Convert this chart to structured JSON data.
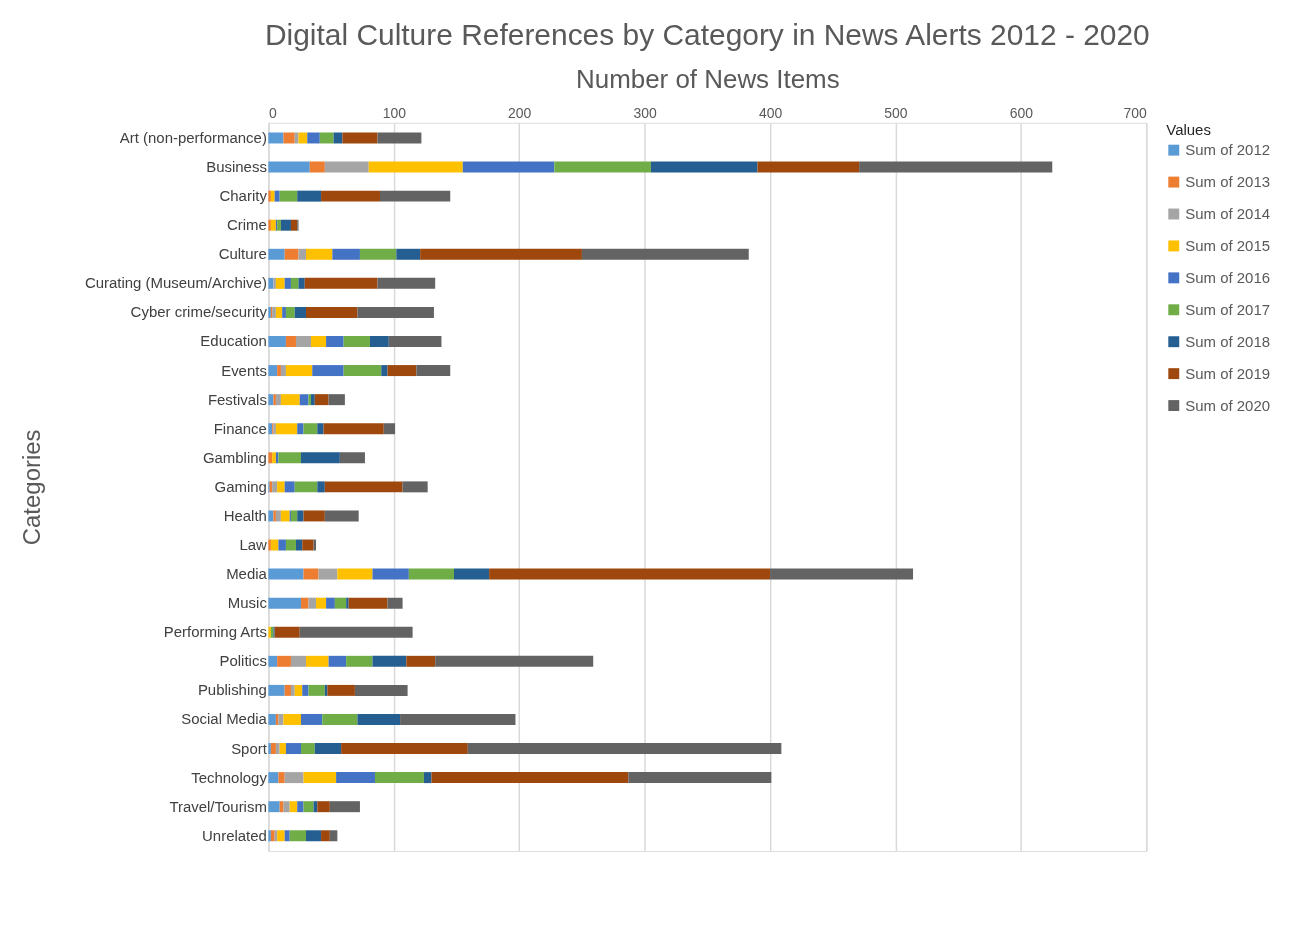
{
  "chart_data": {
    "type": "bar",
    "orientation": "horizontal",
    "stacked": true,
    "title": "Digital Culture References by Category in News Alerts 2012 - 2020",
    "xlabel": "Number of News Items",
    "ylabel": "Categories",
    "legend_title": "Values",
    "categories": [
      "Art (non-performance)",
      "Business",
      "Charity",
      "Crime",
      "Culture",
      "Curating (Museum/Archive)",
      "Cyber crime/security",
      "Education",
      "Events",
      "Festivals",
      "Finance",
      "Gambling",
      "Gaming",
      "Health",
      "Law",
      "Media",
      "Music",
      "Performing Arts",
      "Politics",
      "Publishing",
      "Social Media",
      "Sport",
      "Technology",
      "Travel/Tourism",
      "Unrelated"
    ],
    "series": [
      {
        "name": "Sum of 2012",
        "color": "#5b9bd5",
        "values": [
          12,
          33,
          0,
          0,
          13,
          4,
          2,
          14,
          7,
          4,
          3,
          0,
          1,
          4,
          0,
          28,
          26,
          0,
          7,
          13,
          6,
          2,
          8,
          9,
          2
        ]
      },
      {
        "name": "Sum of 2013",
        "color": "#ed7d31",
        "values": [
          9,
          12,
          2,
          2,
          11,
          0,
          1,
          8,
          3,
          2,
          1,
          3,
          2,
          2,
          2,
          12,
          6,
          0,
          11,
          5,
          2,
          4,
          5,
          3,
          3
        ]
      },
      {
        "name": "Sum of 2014",
        "color": "#a5a5a5",
        "values": [
          3,
          35,
          0,
          0,
          6,
          2,
          3,
          12,
          4,
          4,
          2,
          0,
          4,
          4,
          0,
          15,
          6,
          0,
          12,
          3,
          4,
          3,
          15,
          5,
          2
        ]
      },
      {
        "name": "Sum of 2015",
        "color": "#ffc000",
        "values": [
          7,
          75,
          3,
          4,
          21,
          7,
          5,
          12,
          21,
          15,
          17,
          3,
          6,
          7,
          6,
          28,
          8,
          2,
          18,
          6,
          14,
          5,
          26,
          6,
          6
        ]
      },
      {
        "name": "Sum of 2016",
        "color": "#4472c4",
        "values": [
          10,
          73,
          4,
          1,
          22,
          5,
          3,
          14,
          25,
          7,
          5,
          2,
          8,
          1,
          6,
          29,
          7,
          0,
          14,
          5,
          17,
          12,
          31,
          5,
          4
        ]
      },
      {
        "name": "Sum of 2017",
        "color": "#70ad47",
        "values": [
          11,
          77,
          14,
          3,
          29,
          6,
          7,
          21,
          30,
          2,
          11,
          18,
          18,
          5,
          8,
          36,
          9,
          2,
          21,
          13,
          28,
          11,
          39,
          8,
          13
        ]
      },
      {
        "name": "Sum of 2018",
        "color": "#255e91",
        "values": [
          7,
          85,
          19,
          8,
          19,
          5,
          9,
          15,
          5,
          3,
          5,
          31,
          6,
          5,
          5,
          28,
          2,
          1,
          27,
          2,
          34,
          21,
          6,
          3,
          12
        ]
      },
      {
        "name": "Sum of 2019",
        "color": "#9e480e",
        "values": [
          28,
          81,
          47,
          5,
          129,
          58,
          41,
          0,
          23,
          11,
          48,
          0,
          62,
          17,
          9,
          224,
          31,
          20,
          23,
          22,
          0,
          101,
          157,
          10,
          7
        ]
      },
      {
        "name": "Sum of 2020",
        "color": "#636363",
        "values": [
          35,
          154,
          56,
          1,
          133,
          46,
          61,
          42,
          27,
          13,
          9,
          20,
          20,
          27,
          2,
          114,
          12,
          90,
          126,
          42,
          92,
          250,
          114,
          24,
          6
        ]
      }
    ],
    "xlim": [
      0,
      700
    ],
    "xticks": [
      0,
      100,
      200,
      300,
      400,
      500,
      600,
      700
    ],
    "grid": "x",
    "legend": "right"
  }
}
